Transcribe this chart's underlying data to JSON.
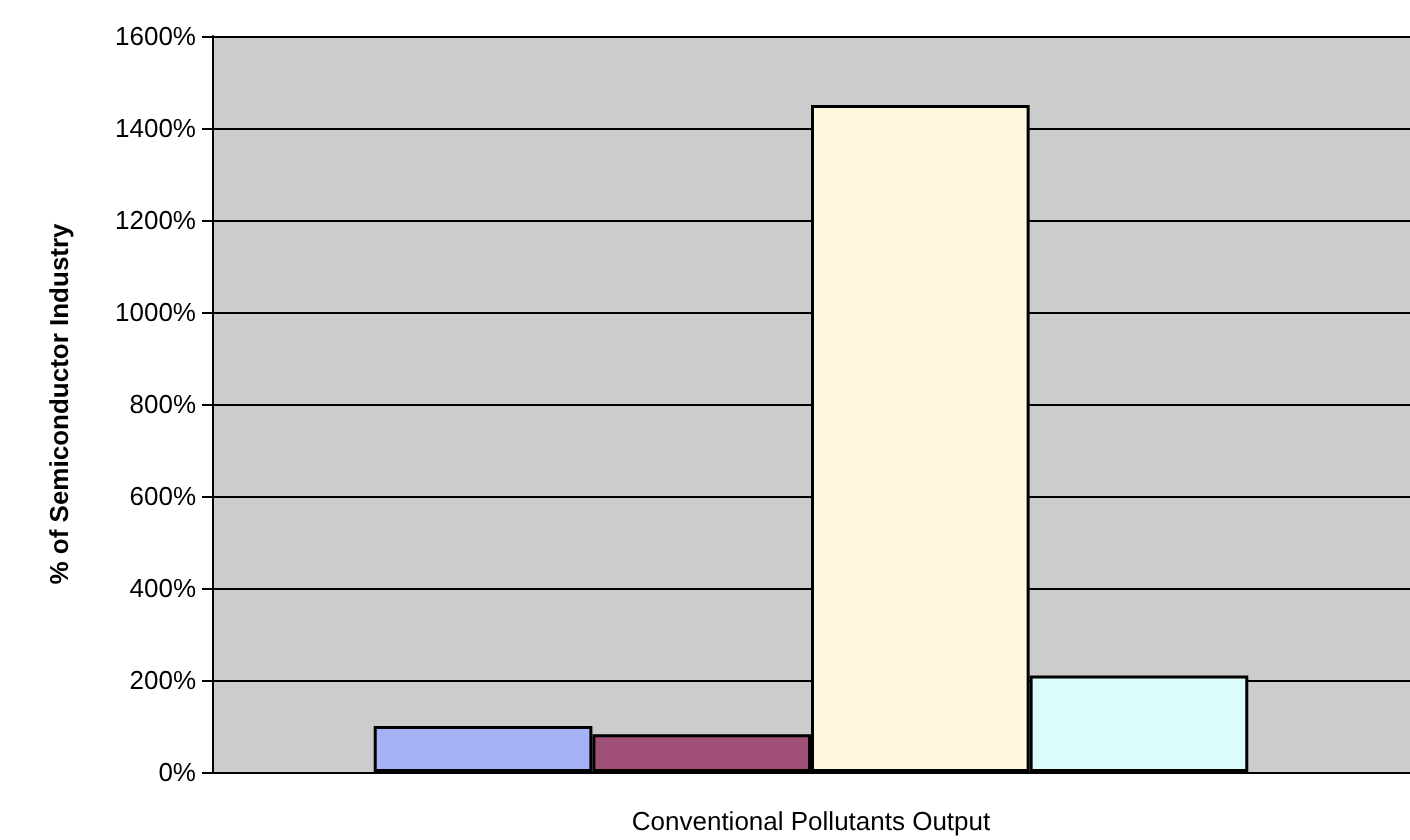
{
  "chart_data": {
    "type": "bar",
    "ylabel": "% of Semiconductor Industry",
    "categories": [
      "Conventional Pollutants Output"
    ],
    "series": [
      {
        "color": "#a6b2f6",
        "values": [
          100
        ]
      },
      {
        "color": "#a05078",
        "values": [
          82
        ]
      },
      {
        "color": "#fff8dc",
        "values": [
          1450
        ]
      },
      {
        "color": "#dcfcfc",
        "values": [
          210
        ]
      }
    ],
    "ylim": [
      0,
      1600
    ],
    "yticks": [
      {
        "value": 0,
        "label": "0%"
      },
      {
        "value": 200,
        "label": "200%"
      },
      {
        "value": 400,
        "label": "400%"
      },
      {
        "value": 600,
        "label": "600%"
      },
      {
        "value": 800,
        "label": "800%"
      },
      {
        "value": 1000,
        "label": "1000%"
      },
      {
        "value": 1200,
        "label": "1200%"
      },
      {
        "value": 1400,
        "label": "1400%"
      },
      {
        "value": 1600,
        "label": "1600%"
      }
    ],
    "grid": "y"
  }
}
